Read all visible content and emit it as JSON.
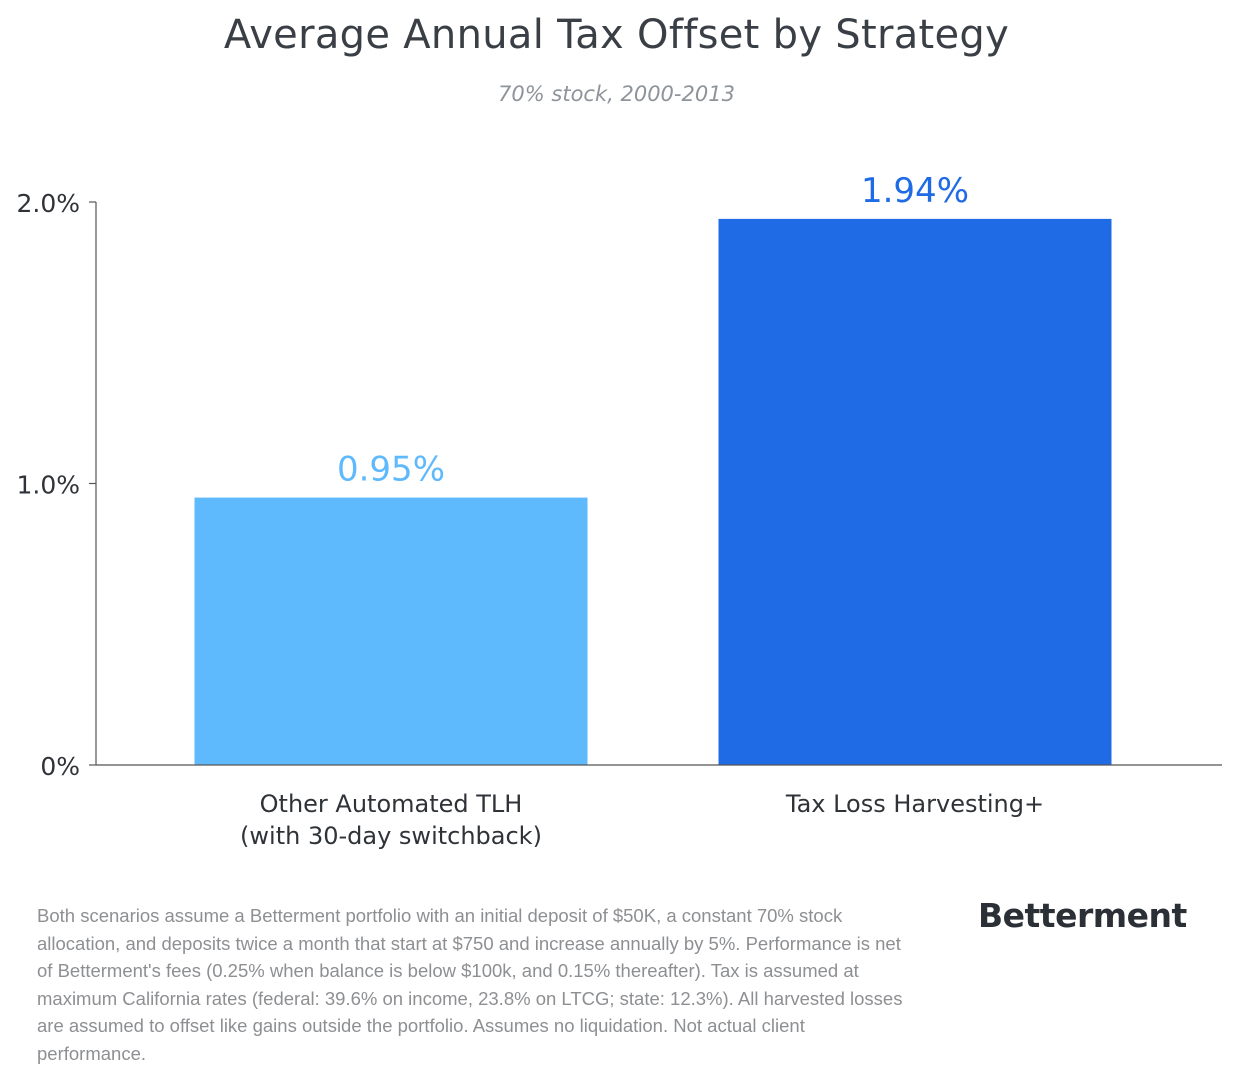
{
  "chart_data": {
    "type": "bar",
    "title": "Average Annual Tax Offset by Strategy",
    "subtitle": "70% stock, 2000-2013",
    "categories": [
      [
        "Other Automated TLH",
        "(with 30-day switchback)"
      ],
      [
        "Tax Loss Harvesting+"
      ]
    ],
    "values": [
      0.95,
      1.94
    ],
    "value_labels": [
      "0.95%",
      "1.94%"
    ],
    "bar_colors": [
      "#5fbafd",
      "#1f6be6"
    ],
    "label_colors": [
      "#5fbafd",
      "#1f6be6"
    ],
    "ylim": [
      0,
      2.0
    ],
    "yticks": [
      0,
      1.0,
      2.0
    ],
    "ytick_labels": [
      "0%",
      "1.0%",
      "2.0%"
    ],
    "grid": false,
    "axis_color": "#555555"
  },
  "footnote": "Both scenarios assume a Betterment portfolio with an initial deposit of  $50K, a constant 70% stock allocation, and deposits twice a month that start at $750 and increase annually by 5%. Performance is net of Betterment's fees (0.25% when balance is below $100k, and 0.15% thereafter). Tax is assumed at maximum California rates (federal: 39.6% on income, 23.8% on LTCG; state: 12.3%).  All harvested losses are assumed to offset like gains outside the portfolio. Assumes no liquidation. Not actual client performance.",
  "brand": "Betterment"
}
